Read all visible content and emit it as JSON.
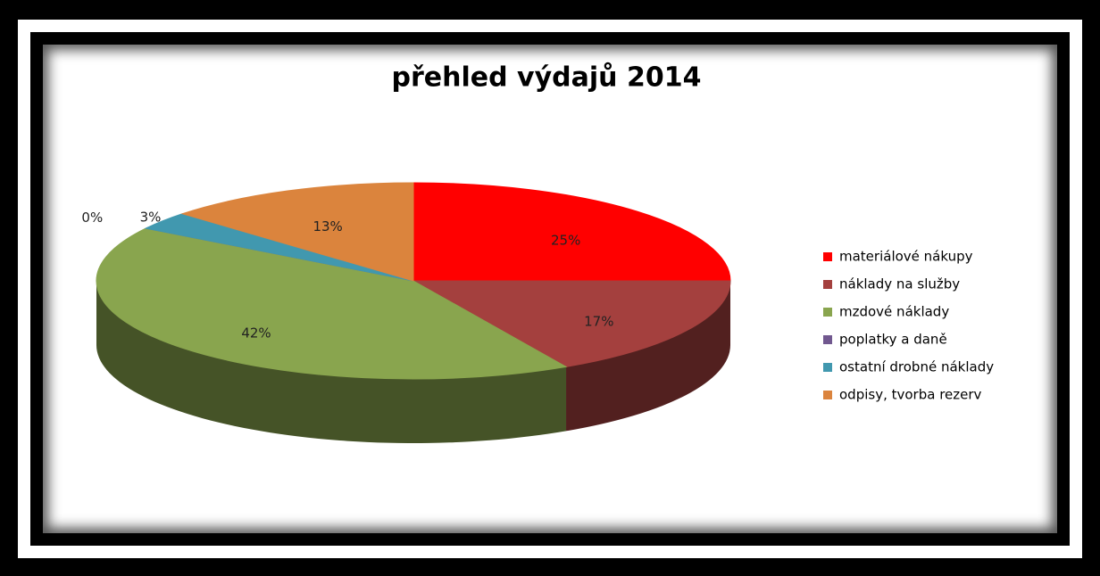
{
  "chart_data": {
    "type": "pie",
    "title": "přehled výdajů 2014",
    "categories": [
      "materiálové nákupy",
      "náklady na služby",
      "mzdové náklady",
      "poplatky a daně",
      "ostatní drobné náklady",
      "odpisy, tvorba rezerv"
    ],
    "values": [
      25,
      17,
      42,
      0,
      3,
      13
    ],
    "value_labels": [
      "25%",
      "17%",
      "42%",
      "0%",
      "3%",
      "13%"
    ],
    "colors": [
      "#ff0000",
      "#a4403e",
      "#89a54e",
      "#71588f",
      "#4198af",
      "#db843d"
    ],
    "legend": "right"
  }
}
